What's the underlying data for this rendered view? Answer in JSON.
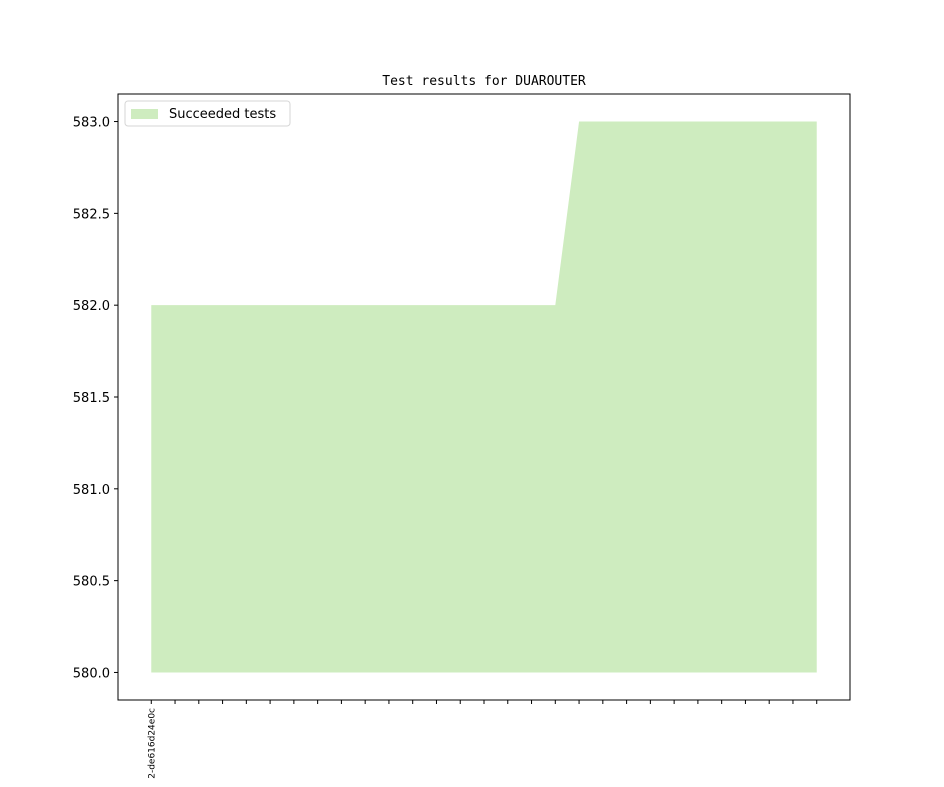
{
  "chart_data": {
    "type": "area",
    "title": "Test results for DUAROUTER",
    "categories": [
      "2-de616d24e0c",
      null,
      null,
      null,
      null,
      null,
      null,
      null,
      null,
      null,
      null,
      null,
      null,
      null,
      null,
      null,
      null,
      null,
      null,
      null,
      null,
      null,
      null,
      null,
      null,
      null,
      null,
      null,
      null
    ],
    "series": [
      {
        "name": "Succeeded tests",
        "color": "#ceecbf",
        "values": [
          582,
          582,
          582,
          582,
          582,
          582,
          582,
          582,
          582,
          582,
          582,
          582,
          582,
          582,
          582,
          582,
          582,
          582,
          583,
          583,
          583,
          583,
          583,
          583,
          583,
          583,
          583,
          583,
          583
        ]
      }
    ],
    "baseline": 580,
    "ylim": [
      579.85,
      583.15
    ],
    "yticks": [
      {
        "value": 580,
        "label": "580.0"
      },
      {
        "value": 580.5,
        "label": "580.5"
      },
      {
        "value": 581,
        "label": "581.0"
      },
      {
        "value": 581.5,
        "label": "581.5"
      },
      {
        "value": 582,
        "label": "582.0"
      },
      {
        "value": 582.5,
        "label": "582.5"
      },
      {
        "value": 583,
        "label": "583.0"
      }
    ],
    "legend": "upper left"
  }
}
